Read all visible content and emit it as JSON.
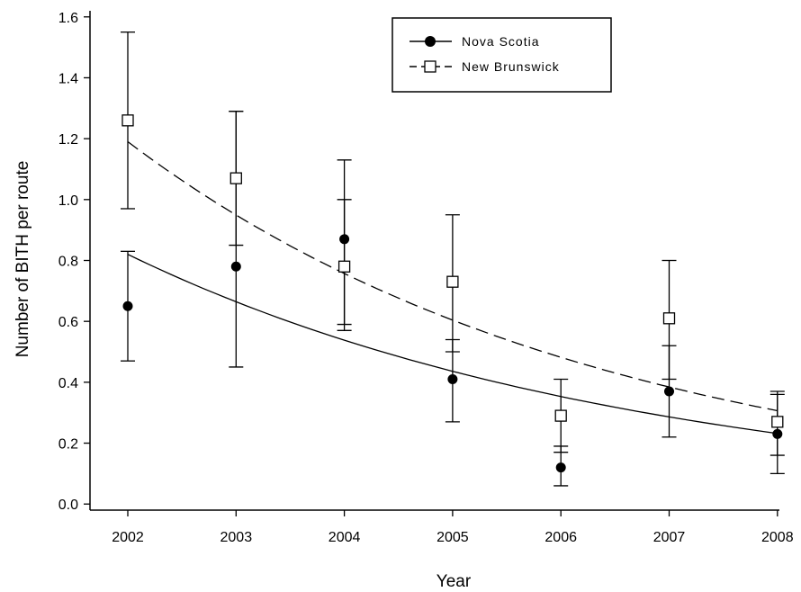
{
  "chart_data": {
    "type": "scatter",
    "title": "",
    "xlabel": "Year",
    "ylabel": "Number of BITH per route",
    "x": [
      2002,
      2003,
      2004,
      2005,
      2006,
      2007,
      2008
    ],
    "x_ticks": [
      "2002",
      "2003",
      "2004",
      "2005",
      "2006",
      "2007",
      "2008"
    ],
    "y_ticks": [
      "0.0",
      "0.2",
      "0.4",
      "0.6",
      "0.8",
      "1.0",
      "1.2",
      "1.4",
      "1.6"
    ],
    "xlim": [
      2001.7,
      2008.0
    ],
    "ylim": [
      -0.02,
      1.62
    ],
    "grid": false,
    "legend_position": "top-right",
    "series": [
      {
        "name": "Nova Scotia",
        "marker": "filled-circle",
        "line_style": "solid",
        "color": "#000000",
        "values": [
          0.65,
          0.78,
          0.87,
          0.41,
          0.12,
          0.37,
          0.23
        ],
        "error_low": [
          0.47,
          0.45,
          0.57,
          0.27,
          0.06,
          0.22,
          0.1
        ],
        "error_high": [
          0.83,
          1.29,
          1.13,
          0.54,
          0.19,
          0.52,
          0.36
        ],
        "trend": {
          "start": 0.82,
          "rate": 0.2105
        }
      },
      {
        "name": "New Brunswick",
        "marker": "open-square",
        "line_style": "dashed",
        "color": "#000000",
        "values": [
          1.26,
          1.07,
          0.78,
          0.73,
          0.29,
          0.61,
          0.27
        ],
        "error_low": [
          0.97,
          0.85,
          0.59,
          0.5,
          0.17,
          0.41,
          0.16
        ],
        "error_high": [
          1.55,
          1.29,
          1.0,
          0.95,
          0.41,
          0.8,
          0.37
        ],
        "trend": {
          "start": 1.19,
          "rate": 0.226
        }
      }
    ]
  }
}
